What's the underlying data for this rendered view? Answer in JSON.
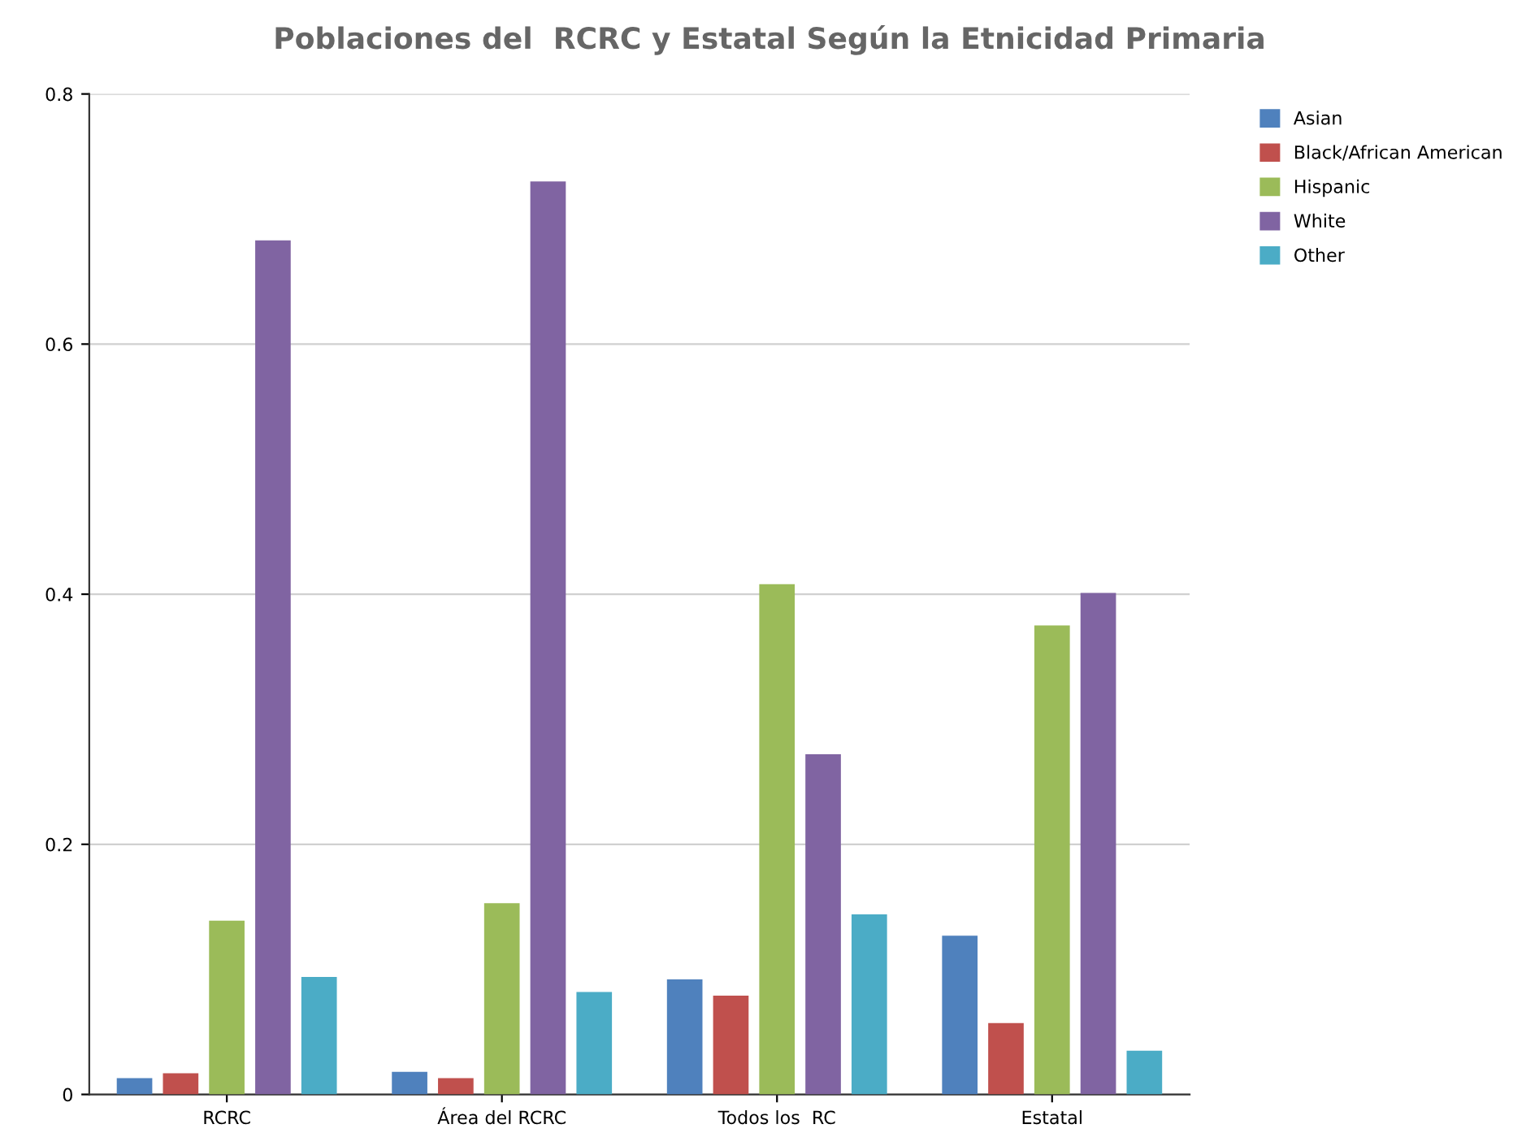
{
  "chart_data": {
    "type": "bar",
    "title": "Poblaciones del  RCRC y Estatal Según la Etnicidad Primaria",
    "categories": [
      "RCRC",
      "Área del RCRC",
      "Todos los  RC",
      "Estatal"
    ],
    "series": [
      {
        "name": "Asian",
        "color": "#4f81bd",
        "values": [
          0.013,
          0.018,
          0.092,
          0.127
        ]
      },
      {
        "name": "Black/African American",
        "color": "#c0504d",
        "values": [
          0.017,
          0.013,
          0.079,
          0.057
        ]
      },
      {
        "name": "Hispanic",
        "color": "#9bbb59",
        "values": [
          0.139,
          0.153,
          0.408,
          0.375
        ]
      },
      {
        "name": "White",
        "color": "#8064a2",
        "values": [
          0.683,
          0.73,
          0.272,
          0.401
        ]
      },
      {
        "name": "Other",
        "color": "#4bacc6",
        "values": [
          0.094,
          0.082,
          0.144,
          0.035
        ]
      }
    ],
    "ylim": [
      0,
      0.8
    ],
    "yticks": [
      0,
      0.2,
      0.4,
      0.6,
      0.8
    ],
    "grid": "y",
    "legend": "top right"
  }
}
